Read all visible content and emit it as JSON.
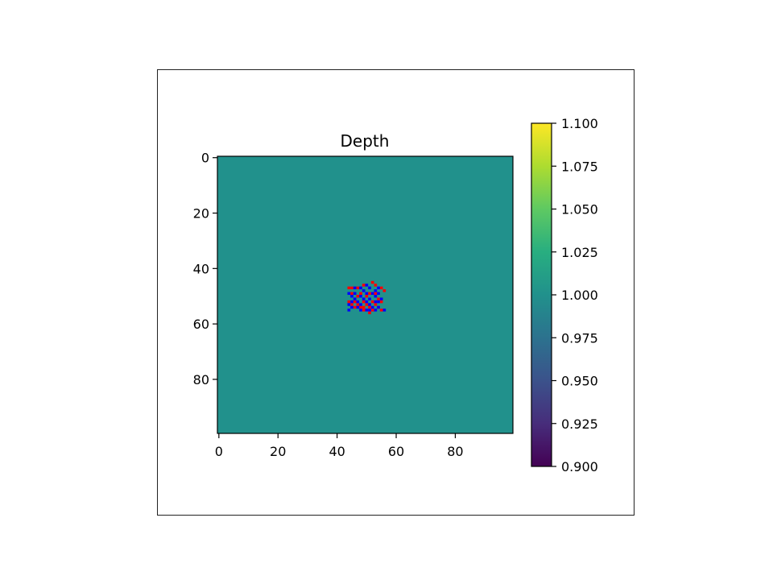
{
  "chart_data": {
    "type": "heatmap",
    "title": "Depth",
    "xlabel": "",
    "ylabel": "",
    "grid": false,
    "x_range": [
      -0.5,
      99.5
    ],
    "y_range": [
      -0.5,
      99.5
    ],
    "y_inverted": true,
    "x_ticks": [
      "0",
      "20",
      "40",
      "60",
      "80"
    ],
    "y_ticks": [
      "0",
      "20",
      "40",
      "60",
      "80"
    ],
    "background_value": 1.0,
    "colormap": "viridis",
    "background_color": "#21918c",
    "colorbar": {
      "range": [
        0.9,
        1.1
      ],
      "ticks": [
        "0.900",
        "0.925",
        "0.950",
        "0.975",
        "1.000",
        "1.025",
        "1.050",
        "1.075",
        "1.100"
      ],
      "position": "right"
    },
    "marker_colors": {
      "red": "#ff0000",
      "blue": "#0000ff"
    },
    "red_pixels": [
      [
        44,
        47
      ],
      [
        45,
        47
      ],
      [
        47,
        47
      ],
      [
        49,
        46
      ],
      [
        52,
        45
      ],
      [
        53,
        46
      ],
      [
        55,
        47
      ],
      [
        56,
        48
      ],
      [
        45,
        49
      ],
      [
        48,
        49
      ],
      [
        51,
        49
      ],
      [
        53,
        49
      ],
      [
        47,
        50
      ],
      [
        50,
        50
      ],
      [
        54,
        51
      ],
      [
        44,
        52
      ],
      [
        46,
        52
      ],
      [
        49,
        52
      ],
      [
        52,
        52
      ],
      [
        55,
        52
      ],
      [
        45,
        53
      ],
      [
        47,
        53
      ],
      [
        50,
        53
      ],
      [
        53,
        53
      ],
      [
        48,
        54
      ],
      [
        49,
        54
      ],
      [
        51,
        54
      ],
      [
        54,
        54
      ],
      [
        46,
        54
      ],
      [
        49,
        55
      ],
      [
        52,
        55
      ],
      [
        55,
        55
      ],
      [
        51,
        56
      ]
    ],
    "blue_pixels": [
      [
        46,
        47
      ],
      [
        48,
        47
      ],
      [
        50,
        46
      ],
      [
        51,
        47
      ],
      [
        54,
        47
      ],
      [
        49,
        48
      ],
      [
        53,
        48
      ],
      [
        44,
        49
      ],
      [
        46,
        49
      ],
      [
        50,
        49
      ],
      [
        52,
        49
      ],
      [
        54,
        49
      ],
      [
        45,
        50
      ],
      [
        48,
        50
      ],
      [
        53,
        50
      ],
      [
        46,
        51
      ],
      [
        49,
        51
      ],
      [
        51,
        51
      ],
      [
        55,
        51
      ],
      [
        45,
        52
      ],
      [
        47,
        52
      ],
      [
        50,
        52
      ],
      [
        53,
        52
      ],
      [
        54,
        52
      ],
      [
        44,
        53
      ],
      [
        48,
        53
      ],
      [
        51,
        53
      ],
      [
        54,
        54
      ],
      [
        45,
        54
      ],
      [
        47,
        54
      ],
      [
        52,
        54
      ],
      [
        44,
        55
      ],
      [
        48,
        55
      ],
      [
        50,
        55
      ],
      [
        53,
        55
      ],
      [
        56,
        55
      ],
      [
        51,
        55
      ]
    ]
  }
}
